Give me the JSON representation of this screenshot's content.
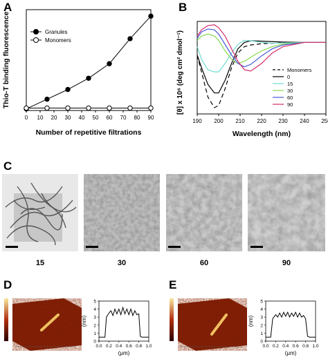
{
  "panels": {
    "A": {
      "letter": "A"
    },
    "B": {
      "letter": "B"
    },
    "C": {
      "letter": "C"
    },
    "D": {
      "letter": "D"
    },
    "E": {
      "letter": "E"
    }
  },
  "micrograph_labels": [
    "15",
    "30",
    "60",
    "90"
  ],
  "chart_data": [
    {
      "panel": "A",
      "type": "line",
      "xlabel": "Number of repetitive filtrations",
      "ylabel": "Thio-T binding fluorescence",
      "xlim": [
        0,
        90
      ],
      "xticks": [
        "0",
        "10",
        "20",
        "30",
        "40",
        "50",
        "60",
        "70",
        "80",
        "90"
      ],
      "ylim": [
        0,
        125
      ],
      "grid": false,
      "legend": "top-left",
      "series": [
        {
          "name": "Granules",
          "marker": "filled-circle",
          "x": [
            0,
            15,
            30,
            45,
            60,
            75,
            90
          ],
          "y": [
            2,
            14,
            26,
            40,
            58,
            89,
            117
          ]
        },
        {
          "name": "Monomers",
          "marker": "open-circle",
          "x": [
            0,
            15,
            30,
            45,
            60,
            75,
            90
          ],
          "y": [
            3,
            3,
            3,
            3,
            3,
            3,
            3
          ]
        }
      ]
    },
    {
      "panel": "B",
      "type": "line",
      "xlabel": "Wavelength (nm)",
      "ylabel": "[θ] x 10⁶ (deg cm² dmol⁻¹)",
      "xlim": [
        190,
        250
      ],
      "xticks": [
        "190",
        "200",
        "210",
        "220",
        "230",
        "240",
        "250"
      ],
      "grid": false,
      "legend": "bottom-right",
      "series": [
        {
          "name": "Monomers",
          "color": "#000000",
          "dash": "6,4",
          "x": [
            190,
            192,
            195,
            198,
            200,
            203,
            206,
            209,
            212,
            215,
            220,
            225,
            230,
            240,
            250
          ],
          "y": [
            -3,
            -7,
            -13,
            -15.5,
            -15,
            -11,
            -6,
            -2.5,
            -1,
            -0.6,
            -0.3,
            -0.2,
            -0.1,
            0,
            0
          ]
        },
        {
          "name": "0",
          "color": "#000000",
          "dash": "",
          "x": [
            190,
            192,
            195,
            198,
            200,
            203,
            206,
            209,
            212,
            215,
            220,
            225,
            230,
            240,
            250
          ],
          "y": [
            -3,
            -6,
            -10,
            -12,
            -12,
            -9,
            -5,
            -1.5,
            0,
            0.4,
            0.3,
            0.2,
            0.1,
            0,
            0
          ]
        },
        {
          "name": "15",
          "color": "#6fdcd0",
          "dash": "",
          "x": [
            190,
            192,
            195,
            198,
            200,
            203,
            206,
            209,
            212,
            215,
            220,
            225,
            230,
            240,
            250
          ],
          "y": [
            -1,
            -4,
            -6.5,
            -7,
            -7,
            -5,
            -2.5,
            -0.5,
            0.5,
            0.4,
            0,
            -0.2,
            -0.1,
            0,
            0
          ]
        },
        {
          "name": "30",
          "color": "#86d84c",
          "dash": "",
          "x": [
            190,
            192,
            195,
            198,
            200,
            203,
            206,
            209,
            212,
            215,
            220,
            225,
            230,
            240,
            250
          ],
          "y": [
            0.5,
            1.5,
            2,
            1.5,
            0.5,
            -2,
            -4,
            -5,
            -4.5,
            -3.5,
            -2,
            -1,
            -0.4,
            0,
            0
          ]
        },
        {
          "name": "60",
          "color": "#4a58d8",
          "dash": "",
          "x": [
            190,
            192,
            195,
            198,
            200,
            203,
            206,
            209,
            212,
            215,
            220,
            225,
            230,
            240,
            250
          ],
          "y": [
            1,
            2.5,
            3.2,
            3,
            2,
            -0.5,
            -3,
            -5,
            -5.8,
            -5.2,
            -3.2,
            -1.5,
            -0.6,
            0,
            0
          ]
        },
        {
          "name": "90",
          "color": "#d42a6a",
          "dash": "",
          "x": [
            190,
            192,
            195,
            198,
            200,
            203,
            206,
            209,
            212,
            215,
            220,
            225,
            230,
            240,
            250
          ],
          "y": [
            1.5,
            3,
            4,
            4.2,
            3.5,
            1.5,
            -1.5,
            -4.5,
            -6.5,
            -6.8,
            -5,
            -2.5,
            -1,
            0,
            0
          ]
        }
      ]
    },
    {
      "panel": "D",
      "type": "line",
      "xlabel": "(μm)",
      "ylabel": "(nm)",
      "xlim": [
        0,
        1.0
      ],
      "xticks": [
        "0.0",
        "0.2",
        "0.4",
        "0.6",
        "0.8",
        "1.0"
      ],
      "ylim": [
        0,
        5
      ],
      "yticks": [
        "0",
        "1",
        "2",
        "3",
        "4",
        "5"
      ],
      "series": [
        {
          "name": "",
          "x": [
            0,
            0.12,
            0.15,
            0.2,
            0.24,
            0.28,
            0.32,
            0.36,
            0.4,
            0.44,
            0.48,
            0.52,
            0.56,
            0.6,
            0.64,
            0.68,
            0.72,
            0.76,
            0.8,
            0.83,
            0.86,
            1.0
          ],
          "y": [
            0.5,
            0.5,
            3,
            3.5,
            3.8,
            3.2,
            4,
            3.4,
            4,
            3.3,
            4.2,
            3.4,
            4,
            3.3,
            4,
            3.2,
            3.8,
            3.3,
            3.4,
            0.6,
            0.5,
            0.5
          ]
        }
      ]
    },
    {
      "panel": "E",
      "type": "line",
      "xlabel": "(μm)",
      "ylabel": "(nm)",
      "xlim": [
        0,
        1.0
      ],
      "xticks": [
        "0.0",
        "0.2",
        "0.4",
        "0.6",
        "0.8",
        "1.0"
      ],
      "ylim": [
        0,
        5
      ],
      "yticks": [
        "0",
        "1",
        "2",
        "3",
        "4",
        "5"
      ],
      "series": [
        {
          "name": "",
          "x": [
            0,
            0.1,
            0.14,
            0.2,
            0.24,
            0.28,
            0.32,
            0.36,
            0.4,
            0.44,
            0.48,
            0.52,
            0.56,
            0.6,
            0.64,
            0.68,
            0.72,
            0.76,
            0.8,
            0.84,
            0.88,
            1.0
          ],
          "y": [
            0.5,
            0.5,
            2.8,
            3.3,
            3,
            3.5,
            3,
            3.6,
            3.1,
            3.6,
            3,
            3.5,
            3.1,
            3.6,
            3,
            3.5,
            3,
            3.2,
            2.8,
            0.6,
            0.5,
            0.5
          ]
        }
      ]
    }
  ],
  "panelB_yticks": [
    "",
    "",
    "",
    "",
    "",
    ""
  ],
  "colors": {
    "granules": "#000000",
    "monomers_open": "#ffffff",
    "afm_low": "#3a0a00",
    "afm_high": "#f0d040"
  }
}
